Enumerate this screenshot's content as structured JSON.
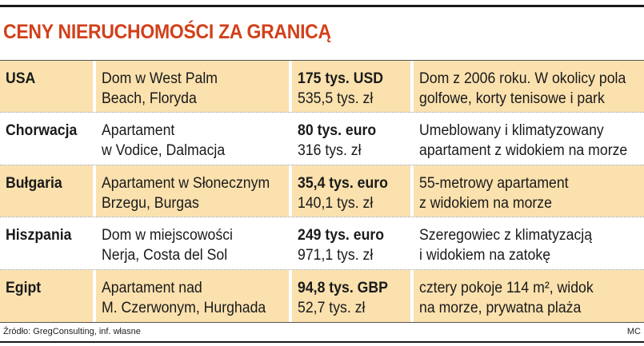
{
  "title": "CENY NIERUCHOMOŚCI ZA GRANICĄ",
  "rows": [
    {
      "country": "USA",
      "property_line1": "Dom w West Palm",
      "property_line2": "Beach, Floryda",
      "price_foreign": "175 tys. USD",
      "price_pln": "535,5 tys. zł",
      "desc_line1": "Dom z 2006 roku. W okolicy pola",
      "desc_line2": "golfowe, korty tenisowe i park",
      "shaded": true
    },
    {
      "country": "Chorwacja",
      "property_line1": "Apartament",
      "property_line2": "w Vodice, Dalmacja",
      "price_foreign": "80 tys. euro",
      "price_pln": "316 tys. zł",
      "desc_line1": "Umeblowany i klimatyzowany",
      "desc_line2": "apartament z widokiem na morze",
      "shaded": false
    },
    {
      "country": "Bułgaria",
      "property_line1": "Apartament w Słonecznym",
      "property_line2": "Brzegu, Burgas",
      "price_foreign": "35,4 tys. euro",
      "price_pln": "140,1 tys. zł",
      "desc_line1": "55-metrowy apartament",
      "desc_line2": "z widokiem na morze",
      "shaded": true
    },
    {
      "country": "Hiszpania",
      "property_line1": "Dom w miejscowości",
      "property_line2": "Nerja, Costa del Sol",
      "price_foreign": "249 tys. euro",
      "price_pln": "971,1 tys. zł",
      "desc_line1": "Szeregowiec z klimatyzacją",
      "desc_line2": "i widokiem na zatokę",
      "shaded": false
    },
    {
      "country": "Egipt",
      "property_line1": "Apartament nad",
      "property_line2": "M. Czerwonym, Hurghada",
      "price_foreign": "94,8 tys. GBP",
      "price_pln": "52,7 tys. zł",
      "desc_line1": "cztery pokoje 114 m², widok",
      "desc_line2": "na morze, prywatna plaża",
      "shaded": true
    }
  ],
  "source": "Źródło: GregConsulting, inf. własne",
  "author": "MC",
  "colors": {
    "title": "#d2401a",
    "shade": "#fbe1ae"
  }
}
